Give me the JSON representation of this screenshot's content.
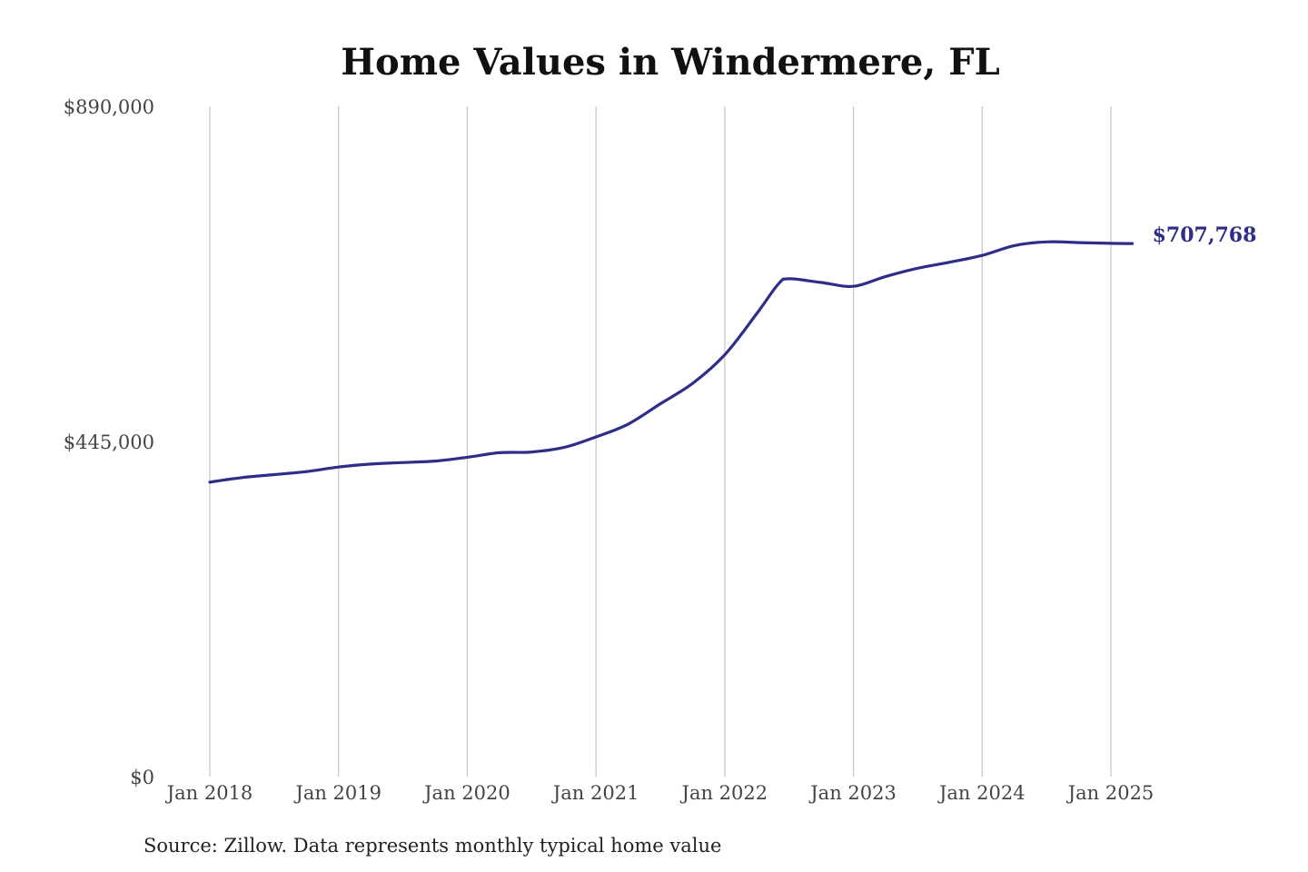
{
  "colors": {
    "line": "#2e2d88",
    "grid": "#c4c4c4",
    "text": "#444444"
  },
  "chart_data": {
    "type": "line",
    "title": "Home Values in Windermere, FL",
    "xlabel": "",
    "ylabel": "",
    "x_ticks": [
      "Jan 2018",
      "Jan 2019",
      "Jan 2020",
      "Jan 2021",
      "Jan 2022",
      "Jan 2023",
      "Jan 2024",
      "Jan 2025"
    ],
    "y_ticks": [
      "$0",
      "$445,000",
      "$890,000"
    ],
    "y_tick_values": [
      0,
      445000,
      890000
    ],
    "ylim": [
      0,
      890000
    ],
    "xlim": [
      "2018-01",
      "2025-03"
    ],
    "grid": "vertical",
    "series": [
      {
        "points": [
          [
            "2018-01",
            391000
          ],
          [
            "2018-04",
            397000
          ],
          [
            "2018-07",
            401000
          ],
          [
            "2018-10",
            405000
          ],
          [
            "2019-01",
            411000
          ],
          [
            "2019-04",
            415000
          ],
          [
            "2019-07",
            417000
          ],
          [
            "2019-10",
            419000
          ],
          [
            "2020-01",
            424000
          ],
          [
            "2020-04",
            430000
          ],
          [
            "2020-07",
            431000
          ],
          [
            "2020-10",
            437000
          ],
          [
            "2021-01",
            451000
          ],
          [
            "2021-04",
            468000
          ],
          [
            "2021-07",
            495000
          ],
          [
            "2021-10",
            522000
          ],
          [
            "2022-01",
            560000
          ],
          [
            "2022-04",
            615000
          ],
          [
            "2022-06",
            654000
          ],
          [
            "2022-07",
            661000
          ],
          [
            "2022-10",
            656000
          ],
          [
            "2023-01",
            651000
          ],
          [
            "2023-04",
            664000
          ],
          [
            "2023-07",
            675000
          ],
          [
            "2023-10",
            683000
          ],
          [
            "2024-01",
            692000
          ],
          [
            "2024-04",
            705000
          ],
          [
            "2024-07",
            710000
          ],
          [
            "2024-10",
            709000
          ],
          [
            "2025-01",
            708000
          ],
          [
            "2025-03",
            707768
          ]
        ]
      }
    ],
    "last_value_label": "$707,768"
  },
  "source": "Source: Zillow. Data represents monthly typical home value"
}
